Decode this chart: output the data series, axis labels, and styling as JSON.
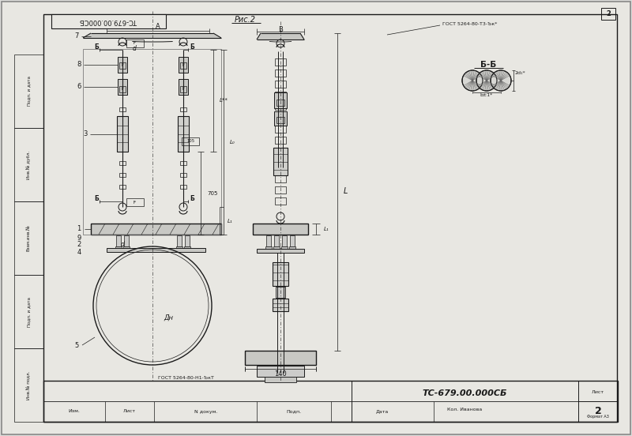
{
  "bg_color": "#dcdcda",
  "line_color": "#1a1a1a",
  "paper_color": "#e8e7e2",
  "title_block_text": "ТС-679.00.000СБ",
  "sheet_num": "2",
  "format_text": "Формат А3",
  "fig_label": "Рис.2",
  "section_label": "Б-Б",
  "sheet_label": "Лист",
  "stamp_author": "Кол. Иванова",
  "gost_bottom": "ГОСТ 5264-80-Н1-ЪкТ",
  "gost_top": "ГОСТ 5264-80-Т3-Ък*",
  "dim_140": "140",
  "dim_705": "705",
  "dim_A": "А",
  "dim_B": "В",
  "dim_Dn": "Дн",
  "dim_d": "d",
  "col_headers": [
    "Изм.",
    "Лист",
    "N докум.",
    "Подп.",
    "Дата"
  ],
  "stamp_labels": [
    "Инв.№ подл.",
    "Подп. и дата",
    "Взам.инв.№",
    "Инв.№ дубл.",
    "Подп. и дата"
  ],
  "fig_width": 8.0,
  "fig_height": 5.52
}
